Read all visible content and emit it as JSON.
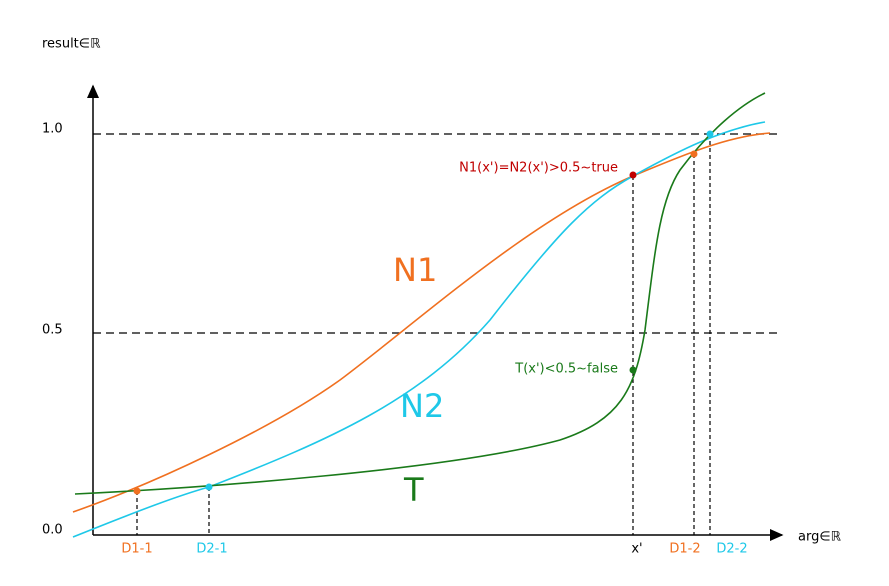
{
  "axes": {
    "y_label": "result∈ℝ",
    "x_label": "arg∈ℝ",
    "y_ticks": [
      "1.0",
      "0.5",
      "0.0"
    ]
  },
  "curves": [
    {
      "label": "N1"
    },
    {
      "label": "N2"
    },
    {
      "label": "T"
    }
  ],
  "annotations": [
    "N1(x')=N2(x')>0.5~true",
    "T(x')<0.5~false"
  ],
  "x_markers": [
    "D1-1",
    "D2-1",
    "x'",
    "D1-2",
    "D2-2"
  ]
}
